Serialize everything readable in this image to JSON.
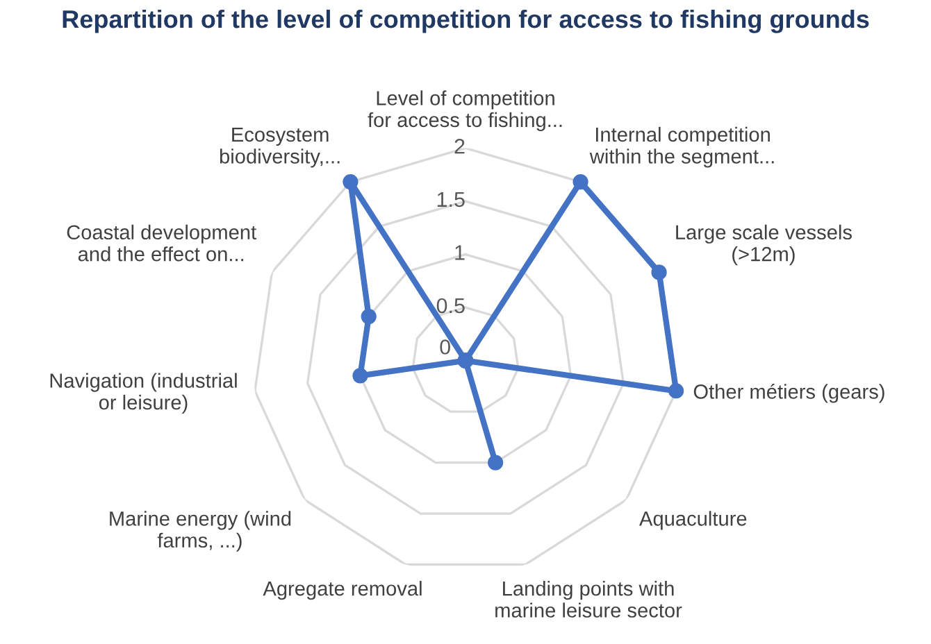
{
  "chart_data": {
    "type": "radar",
    "title": "Repartition of the level of competition for access to fishing grounds",
    "categories": [
      "Level of competition\nfor access to fishing...",
      "Internal competition\nwithin the segment...",
      "Large scale vessels\n(>12m)",
      "Other métiers (gears)",
      "Aquaculture",
      "Landing points with\nmarine leisure sector",
      "Agregate removal",
      "Marine energy (wind\nfarms, ...)",
      "Navigation (industrial\nor leisure)",
      "Coastal development\nand the effect on...",
      "Ecosystem\nbiodiversity,..."
    ],
    "series": [
      {
        "color": "#4472c4",
        "values": [
          0,
          2,
          2,
          2,
          0,
          1,
          0,
          0,
          1,
          1,
          2
        ]
      }
    ],
    "ylim": [
      0,
      2
    ],
    "yticks": [
      0,
      0.5,
      1,
      1.5,
      2
    ],
    "grid": "y",
    "marker": "circle",
    "line_style": "solid"
  }
}
